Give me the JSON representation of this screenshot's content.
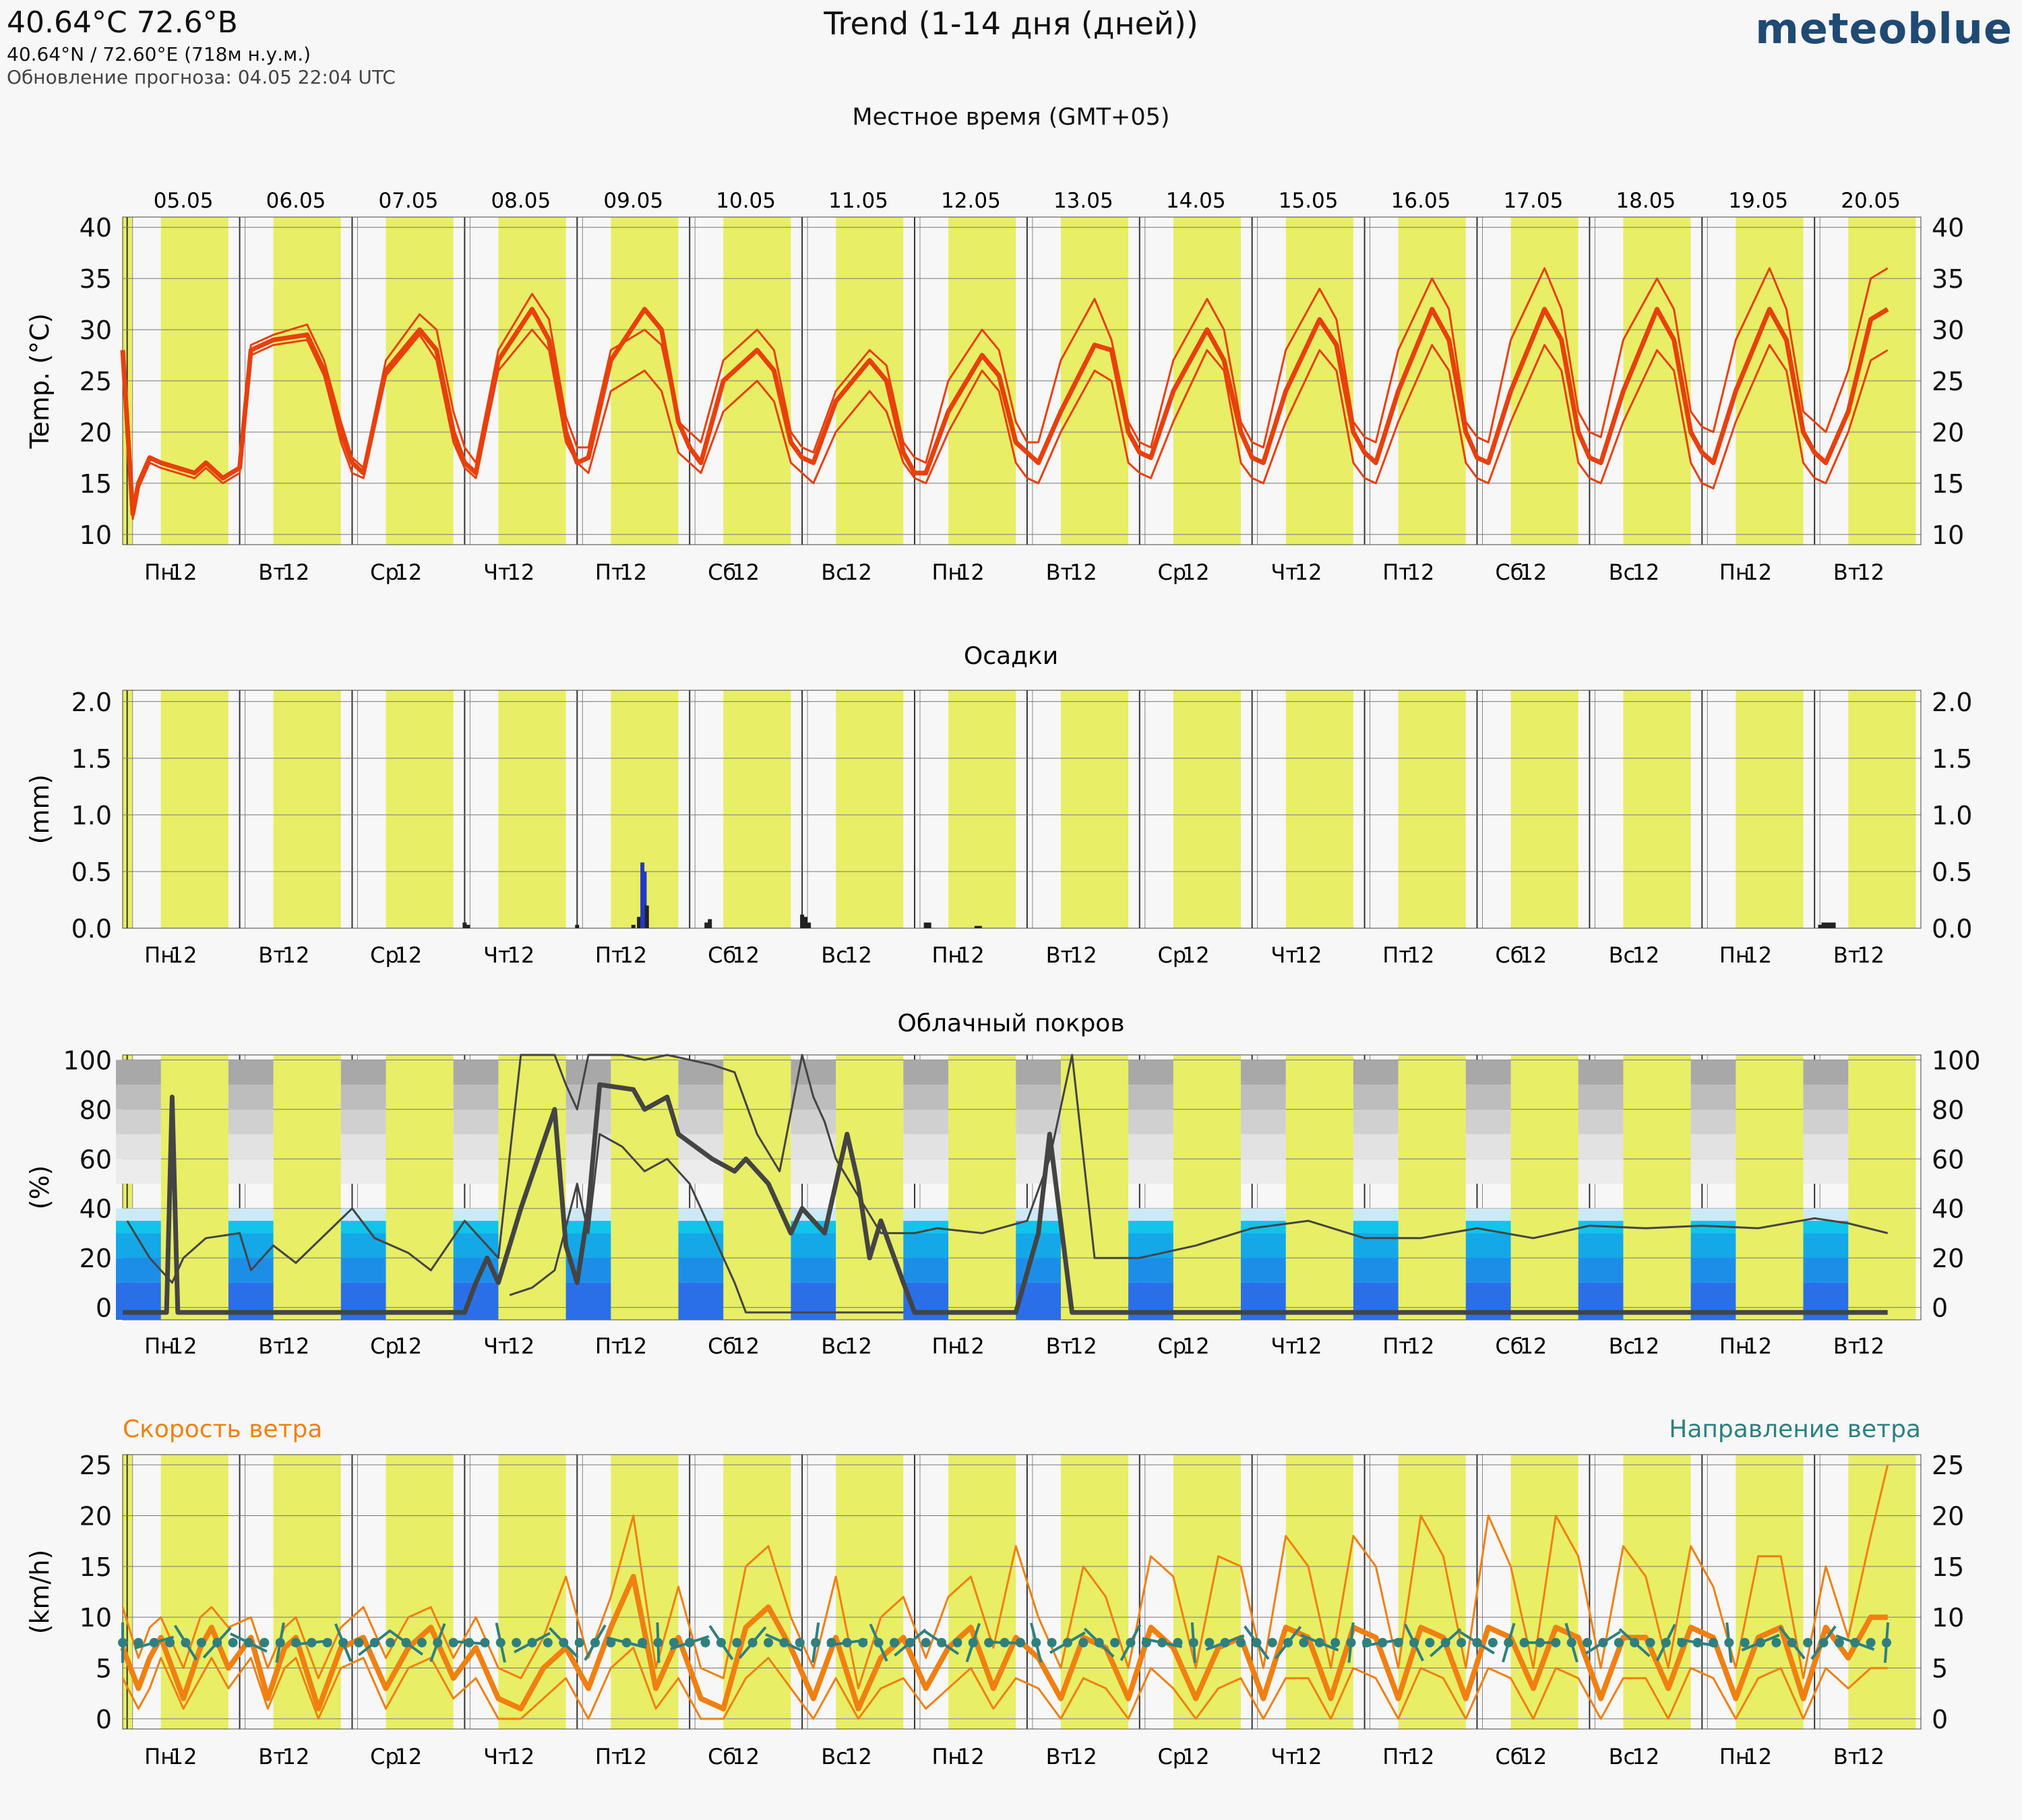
{
  "header": {
    "coord_title": "40.64°C 72.6°B",
    "coord_sub": "40.64°N / 72.60°E (718м н.у.м.)",
    "update_line": "Обновление прогноза: 04.05 22:04 UTC",
    "main_title": "Trend (1-14 дня (дней))",
    "brand": "meteoblue",
    "local_time": "Местное время (GMT+05)"
  },
  "axis": {
    "dates": [
      "05.05",
      "06.05",
      "07.05",
      "08.05",
      "09.05",
      "10.05",
      "11.05",
      "12.05",
      "13.05",
      "14.05",
      "15.05",
      "16.05",
      "17.05",
      "18.05",
      "19.05",
      "20.05"
    ],
    "day_labels": [
      "Пн",
      "Вт",
      "Ср",
      "Чт",
      "Пт",
      "Сб",
      "Вс",
      "Пн",
      "Вт",
      "Ср",
      "Чт",
      "Пт",
      "Сб",
      "Вс",
      "Пн",
      "Вт"
    ],
    "noon_label": "12"
  },
  "colors": {
    "day_band": "#e8ee66",
    "night_band": "#f7f7f7",
    "temperature": "#e8400c",
    "precip": "#2437c9",
    "cloud": "#444444",
    "wind_speed": "#f08010",
    "wind_dir": "#2e8080"
  },
  "panels": {
    "temperature": {
      "title": "",
      "ylabel": "Temp. (°C)"
    },
    "precip": {
      "title": "Осадки",
      "ylabel": "(mm)"
    },
    "cloud": {
      "title": "Облачный покров",
      "ylabel": "(%)"
    },
    "wind": {
      "title_left": "Скорость ветра",
      "title_right": "Направление ветра",
      "ylabel": "(km/h)"
    }
  },
  "chart_data": [
    {
      "type": "line",
      "title": "",
      "ylabel": "Temp. (°C)",
      "ylim": [
        9,
        41
      ],
      "yticks": [
        10,
        15,
        20,
        25,
        30,
        35,
        40
      ],
      "x_unit": "days from 05.05 00:00 (local)",
      "x": [
        -0.04,
        0.05,
        0.1,
        0.2,
        0.3,
        0.45,
        0.6,
        0.7,
        0.85,
        1.0,
        1.1,
        1.3,
        1.6,
        1.75,
        1.9,
        2.0,
        2.1,
        2.3,
        2.6,
        2.75,
        2.9,
        3.0,
        3.1,
        3.3,
        3.6,
        3.75,
        3.9,
        4.0,
        4.1,
        4.3,
        4.6,
        4.75,
        4.9,
        5.0,
        5.1,
        5.3,
        5.6,
        5.75,
        5.9,
        6.0,
        6.1,
        6.3,
        6.6,
        6.75,
        6.9,
        7.0,
        7.1,
        7.3,
        7.6,
        7.75,
        7.9,
        8.0,
        8.1,
        8.3,
        8.6,
        8.75,
        8.9,
        9.0,
        9.1,
        9.3,
        9.6,
        9.75,
        9.9,
        10.0,
        10.1,
        10.3,
        10.6,
        10.75,
        10.9,
        11.0,
        11.1,
        11.3,
        11.6,
        11.75,
        11.9,
        12.0,
        12.1,
        12.3,
        12.6,
        12.75,
        12.9,
        13.0,
        13.1,
        13.3,
        13.6,
        13.75,
        13.9,
        14.0,
        14.1,
        14.3,
        14.6,
        14.75,
        14.9,
        15.0,
        15.1,
        15.3,
        15.5,
        15.65
      ],
      "series": [
        {
          "role": "mean",
          "values": [
            28,
            12,
            15,
            17.5,
            17,
            16.5,
            16,
            17,
            15.5,
            16.5,
            28,
            29,
            29.5,
            26,
            20,
            17,
            16,
            26,
            30,
            28,
            20,
            17,
            16,
            27,
            32,
            29,
            20,
            17,
            17.5,
            27,
            32,
            30,
            21,
            18.5,
            17,
            25,
            28,
            26,
            19,
            17.5,
            17,
            23,
            27,
            25,
            18,
            16,
            16,
            22,
            27.5,
            25.5,
            19,
            18,
            17,
            22,
            28.5,
            28,
            20,
            18,
            17.5,
            24,
            30,
            27,
            20,
            17.5,
            17,
            24,
            31,
            28.5,
            20,
            18,
            17,
            24,
            32,
            29,
            20,
            17.5,
            17,
            24,
            32,
            29,
            20,
            17.5,
            17,
            24,
            32,
            29,
            20,
            18,
            17,
            24,
            32,
            29,
            20,
            18,
            17,
            22,
            31,
            32
          ]
        },
        {
          "role": "max",
          "values": [
            28,
            12,
            15,
            17.5,
            17,
            16.5,
            16,
            17,
            15.5,
            16.5,
            28.5,
            29.5,
            30.5,
            27,
            21,
            17.5,
            16.5,
            27,
            31.5,
            30,
            22,
            18.5,
            17,
            28,
            33.5,
            31,
            21.5,
            18.5,
            18.5,
            28,
            30,
            28.5,
            21,
            20,
            19,
            27,
            30,
            28,
            20,
            18.5,
            18,
            24,
            28,
            26.5,
            19,
            17.5,
            17,
            25,
            30,
            28,
            21,
            19,
            19,
            27,
            33,
            29,
            21,
            19,
            18.5,
            27,
            33,
            30,
            21,
            19,
            18.5,
            28,
            34,
            31,
            21,
            19.5,
            19,
            28,
            35,
            32,
            21,
            19.5,
            19,
            29,
            36,
            32,
            22,
            20,
            19.5,
            29,
            35,
            32,
            22,
            20.5,
            20,
            29,
            36,
            32,
            22,
            21,
            20,
            26,
            35,
            36
          ]
        },
        {
          "role": "min",
          "values": [
            28,
            11.5,
            14.5,
            17,
            16.5,
            16,
            15.5,
            16.5,
            15,
            16,
            27.5,
            28.5,
            29,
            25.5,
            19,
            16,
            15.5,
            25.5,
            29.5,
            27,
            19,
            16.5,
            15.5,
            26,
            30,
            28,
            19,
            17,
            16,
            24,
            26,
            24,
            18,
            17,
            16,
            22,
            25,
            23,
            17,
            16,
            15,
            20,
            24,
            22,
            17,
            15.5,
            15,
            20,
            26,
            24,
            17,
            15.5,
            15,
            20,
            26,
            25,
            17,
            16,
            15.5,
            21,
            28,
            26,
            17,
            15.5,
            15,
            21,
            28,
            26,
            17,
            15.5,
            15,
            21,
            28.5,
            26,
            17,
            15.5,
            15,
            21,
            28.5,
            26,
            17,
            15.5,
            15,
            21,
            28,
            26,
            17,
            15,
            14.5,
            21,
            28.5,
            26,
            17,
            15.5,
            15,
            20,
            27,
            28
          ]
        }
      ]
    },
    {
      "type": "bar",
      "title": "Осадки",
      "ylabel": "(mm)",
      "ylim": [
        0,
        2.1
      ],
      "yticks": [
        0.0,
        0.5,
        1.0,
        1.5,
        2.0
      ],
      "x_unit": "days from 05.05 00:00 (local)",
      "x": [
        3.0,
        3.03,
        4.0,
        4.5,
        4.55,
        4.58,
        4.6,
        4.62,
        5.15,
        5.18,
        6.0,
        6.03,
        6.06,
        7.1,
        7.13,
        7.55,
        7.58,
        15.05,
        15.08,
        15.11,
        15.14,
        15.17
      ],
      "values": [
        0.05,
        0.03,
        0.03,
        0.03,
        0.1,
        0.58,
        0.5,
        0.2,
        0.05,
        0.08,
        0.12,
        0.1,
        0.05,
        0.05,
        0.05,
        0.02,
        0.02,
        0.03,
        0.05,
        0.05,
        0.05,
        0.05
      ]
    },
    {
      "type": "line",
      "title": "Облачный покров",
      "ylabel": "(%)",
      "ylim": [
        -5,
        102
      ],
      "yticks": [
        0,
        20,
        40,
        60,
        80,
        100
      ],
      "x_unit": "days from 05.05 00:00 (local)",
      "series": [
        {
          "role": "mean",
          "x": [
            -0.04,
            0.2,
            0.35,
            0.4,
            0.45,
            0.5,
            0.6,
            1.0,
            2.0,
            3.0,
            3.1,
            3.2,
            3.3,
            3.5,
            3.8,
            3.9,
            4.0,
            4.1,
            4.2,
            4.5,
            4.6,
            4.8,
            4.9,
            5.2,
            5.4,
            5.5,
            5.7,
            5.9,
            6.0,
            6.2,
            6.4,
            6.5,
            6.6,
            6.7,
            6.9,
            7.0,
            7.3,
            7.5,
            7.6,
            7.9,
            8.1,
            8.2,
            8.4,
            8.6,
            8.8,
            9.0,
            10.0,
            11.0,
            12.0,
            13.0,
            14.0,
            15.0,
            15.65
          ],
          "values": [
            -2,
            -2,
            -2,
            85,
            -2,
            -2,
            -2,
            -2,
            -2,
            -2,
            10,
            20,
            10,
            40,
            80,
            25,
            10,
            40,
            90,
            88,
            80,
            85,
            70,
            60,
            55,
            60,
            50,
            30,
            40,
            30,
            70,
            50,
            20,
            35,
            10,
            -2,
            -2,
            -2,
            -2,
            -2,
            30,
            70,
            -2,
            -2,
            -2,
            -2,
            -2,
            -2,
            -2,
            -2,
            -2,
            -2,
            -2
          ]
        },
        {
          "role": "max",
          "x": [
            0.0,
            0.2,
            0.4,
            0.5,
            0.7,
            1.0,
            1.1,
            1.3,
            1.5,
            2.0,
            2.2,
            2.5,
            2.7,
            3.0,
            3.3,
            3.5,
            3.8,
            3.9,
            4.0,
            4.1,
            4.2,
            4.4,
            4.6,
            4.8,
            5.0,
            5.2,
            5.4,
            5.6,
            5.8,
            6.0,
            6.1,
            6.2,
            6.3,
            6.5,
            6.7,
            7.0,
            7.2,
            7.6,
            8.0,
            8.2,
            8.4,
            8.6,
            9.0,
            9.5,
            10.0,
            10.5,
            11.0,
            11.5,
            12.0,
            12.5,
            13.0,
            13.5,
            14.0,
            14.5,
            15.0,
            15.3,
            15.65
          ],
          "values": [
            35,
            20,
            10,
            20,
            28,
            30,
            15,
            25,
            18,
            40,
            28,
            22,
            15,
            35,
            20,
            102,
            102,
            90,
            80,
            102,
            102,
            102,
            100,
            102,
            100,
            98,
            95,
            70,
            55,
            102,
            85,
            75,
            60,
            45,
            30,
            30,
            32,
            30,
            35,
            60,
            102,
            20,
            20,
            25,
            32,
            35,
            28,
            28,
            32,
            28,
            33,
            32,
            33,
            32,
            36,
            34,
            30
          ]
        },
        {
          "role": "min",
          "x": [
            3.4,
            3.6,
            3.8,
            4.0,
            4.1,
            4.2,
            4.4,
            4.6,
            4.8,
            5.0,
            5.2,
            5.4,
            5.5,
            5.7,
            5.9,
            6.2,
            6.4,
            6.5,
            6.7,
            6.9
          ],
          "values": [
            5,
            8,
            15,
            50,
            30,
            70,
            65,
            55,
            60,
            50,
            30,
            10,
            -2,
            -2,
            -2,
            -2,
            -2,
            -2,
            -2,
            -2
          ]
        }
      ]
    },
    {
      "type": "line",
      "title": "Скорость ветра",
      "title_right": "Направление ветра",
      "ylabel": "(km/h)",
      "ylim": [
        -1,
        26
      ],
      "yticks": [
        0,
        5,
        10,
        15,
        20,
        25
      ],
      "x_unit": "days from 05.05 00:00 (local)",
      "x": [
        -0.04,
        0.1,
        0.2,
        0.3,
        0.5,
        0.65,
        0.75,
        0.9,
        1.1,
        1.25,
        1.4,
        1.5,
        1.7,
        1.9,
        2.1,
        2.3,
        2.5,
        2.7,
        2.9,
        3.1,
        3.3,
        3.5,
        3.7,
        3.9,
        4.1,
        4.3,
        4.5,
        4.7,
        4.9,
        5.1,
        5.3,
        5.5,
        5.7,
        5.9,
        6.1,
        6.3,
        6.5,
        6.7,
        6.9,
        7.1,
        7.3,
        7.5,
        7.7,
        7.9,
        8.1,
        8.3,
        8.5,
        8.7,
        8.9,
        9.1,
        9.3,
        9.5,
        9.7,
        9.9,
        10.1,
        10.3,
        10.5,
        10.7,
        10.9,
        11.1,
        11.3,
        11.5,
        11.7,
        11.9,
        12.1,
        12.3,
        12.5,
        12.7,
        12.9,
        13.1,
        13.3,
        13.5,
        13.7,
        13.9,
        14.1,
        14.3,
        14.5,
        14.7,
        14.9,
        15.1,
        15.3,
        15.5,
        15.65
      ],
      "series": [
        {
          "role": "mean",
          "values": [
            7,
            3,
            6,
            8,
            2,
            7,
            9,
            5,
            8,
            2,
            7,
            8,
            1,
            7,
            8,
            3,
            7,
            9,
            4,
            7,
            2,
            1,
            5,
            7,
            3,
            9,
            14,
            3,
            8,
            2,
            1,
            9,
            11,
            7,
            2,
            8,
            1,
            6,
            8,
            3,
            7,
            9,
            3,
            8,
            6,
            2,
            8,
            7,
            2,
            9,
            7,
            2,
            7,
            8,
            2,
            9,
            8,
            2,
            9,
            8,
            2,
            9,
            8,
            2,
            9,
            8,
            3,
            9,
            8,
            2,
            8,
            8,
            3,
            9,
            8,
            2,
            8,
            9,
            2,
            9,
            6,
            10,
            10
          ]
        },
        {
          "role": "max",
          "values": [
            11,
            6,
            9,
            10,
            5,
            10,
            11,
            9,
            10,
            5,
            9,
            10,
            4,
            9,
            11,
            6,
            10,
            11,
            6,
            10,
            5,
            4,
            8,
            14,
            6,
            12,
            20,
            5,
            13,
            5,
            4,
            15,
            17,
            10,
            5,
            14,
            3,
            10,
            12,
            6,
            12,
            14,
            7,
            17,
            10,
            5,
            15,
            12,
            5,
            16,
            14,
            5,
            16,
            15,
            5,
            18,
            15,
            5,
            18,
            15,
            5,
            20,
            16,
            5,
            20,
            15,
            5,
            20,
            16,
            5,
            17,
            14,
            5,
            17,
            13,
            5,
            16,
            16,
            4,
            15,
            8,
            18,
            25
          ]
        },
        {
          "role": "min",
          "values": [
            4,
            1,
            3,
            6,
            1,
            4,
            6,
            3,
            6,
            1,
            5,
            6,
            0,
            5,
            6,
            1,
            5,
            6,
            2,
            4,
            0,
            0,
            2,
            4,
            0,
            5,
            7,
            1,
            4,
            0,
            0,
            4,
            6,
            3,
            0,
            4,
            0,
            3,
            4,
            1,
            3,
            5,
            1,
            4,
            3,
            0,
            4,
            3,
            0,
            5,
            3,
            0,
            3,
            4,
            0,
            4,
            4,
            0,
            5,
            4,
            0,
            5,
            4,
            0,
            5,
            4,
            0,
            5,
            4,
            0,
            4,
            4,
            0,
            5,
            4,
            0,
            4,
            5,
            0,
            5,
            3,
            5,
            5
          ]
        }
      ],
      "wind_direction_arrows": "dots with barbs every ~1.5h across the full range"
    }
  ]
}
